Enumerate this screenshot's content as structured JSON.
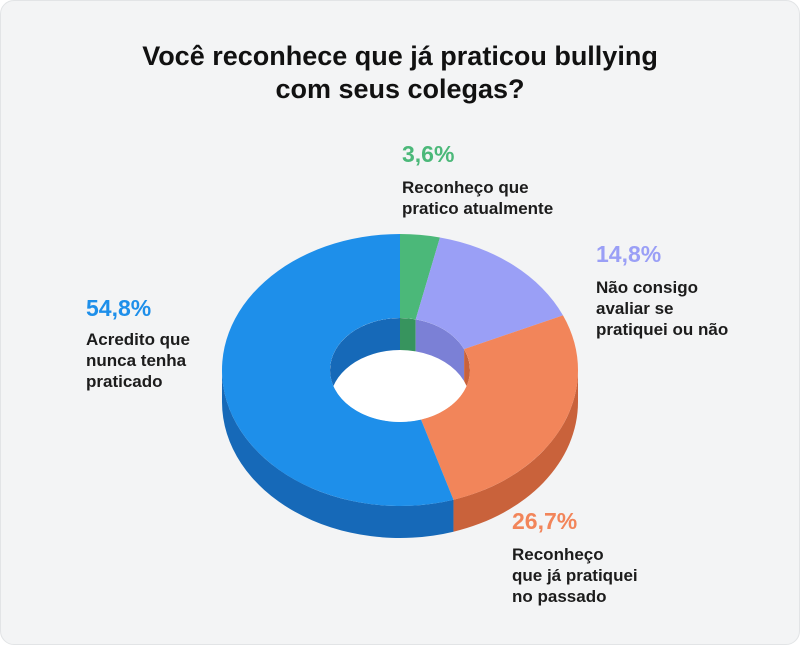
{
  "chart_data": {
    "type": "pie",
    "variant": "3d-donut",
    "title_lines": [
      "Você reconhece que já praticou bullying",
      "com seus colegas?"
    ],
    "slices": [
      {
        "value": 3.6,
        "pct_label": "3,6%",
        "label_lines": [
          "Reconheço que",
          "pratico atualmente"
        ],
        "color": "#4bb879",
        "side": "#37945e"
      },
      {
        "value": 14.8,
        "pct_label": "14,8%",
        "label_lines": [
          "Não consigo",
          "avaliar se",
          "pratiquei ou não"
        ],
        "color": "#9a9ff6",
        "side": "#7b80d6"
      },
      {
        "value": 26.7,
        "pct_label": "26,7%",
        "label_lines": [
          "Reconheço",
          "que já pratiquei",
          "no passado"
        ],
        "color": "#f2855a",
        "side": "#c9623b"
      },
      {
        "value": 54.8,
        "pct_label": "54,8%",
        "label_lines": [
          "Acredito que",
          "nunca tenha",
          "praticado"
        ],
        "color": "#1e8fea",
        "side": "#1669b8"
      }
    ]
  }
}
